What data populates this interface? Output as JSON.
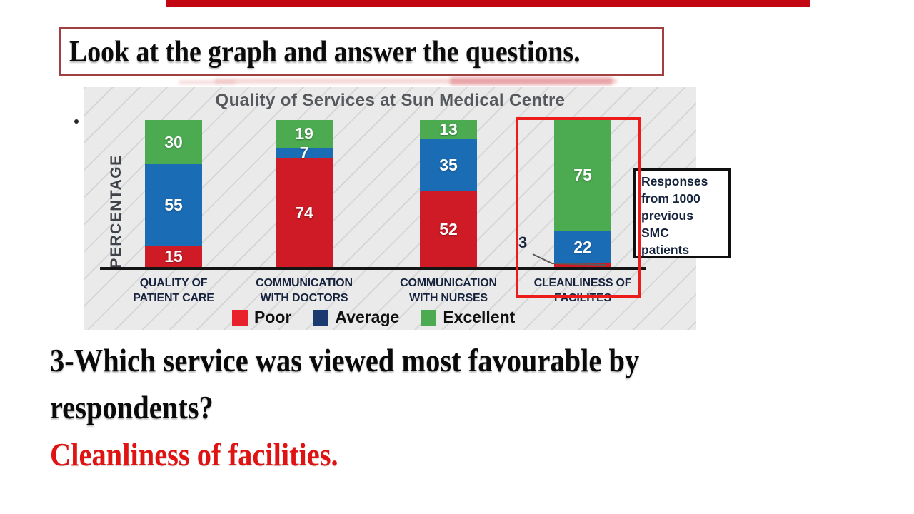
{
  "slide": {
    "top_banner_color": "#c20712",
    "title_box_text": "Look at the graph and answer the questions.",
    "question_line1": "3-Which service was viewed most favourable by",
    "question_line2": "respondents?",
    "answer_text": "Cleanliness of facilities.",
    "answer_color": "#e01212"
  },
  "chart_data": {
    "type": "bar",
    "stacked": true,
    "title": "Quality of Services at Sun Medical Centre",
    "ylabel": "PERCENTAGE",
    "ylim": [
      0,
      100
    ],
    "grid": false,
    "legend_position": "bottom",
    "categories": [
      "QUALITY OF\nPATIENT CARE",
      "COMMUNICATION\nWITH DOCTORS",
      "COMMUNICATION\nWITH NURSES",
      "CLEANLINESS OF\nFACILITES"
    ],
    "series": [
      {
        "name": "Poor",
        "color": "#ce1b26",
        "values": [
          15,
          74,
          52,
          3
        ]
      },
      {
        "name": "Average",
        "color": "#1a6cb5",
        "values": [
          55,
          7,
          35,
          22
        ]
      },
      {
        "name": "Excellent",
        "color": "#4cab51",
        "values": [
          30,
          19,
          13,
          75
        ]
      }
    ],
    "legend": [
      {
        "label": "Poor",
        "color": "#e8212c"
      },
      {
        "label": "Average",
        "color": "#1b3a70"
      },
      {
        "label": "Excellent",
        "color": "#4cab51"
      }
    ],
    "bar_value_labels_color": "#ffffff",
    "callout": {
      "value_label": "3",
      "category": "CLEANLINESS OF\nFACILITES",
      "series": "Poor"
    },
    "annotation_box_lines": [
      "Responses",
      "from 1000",
      "previous",
      "SMC",
      "patients"
    ],
    "highlight": {
      "category": "CLEANLINESS OF\nFACILITES",
      "color": "#ec1c1c"
    }
  }
}
